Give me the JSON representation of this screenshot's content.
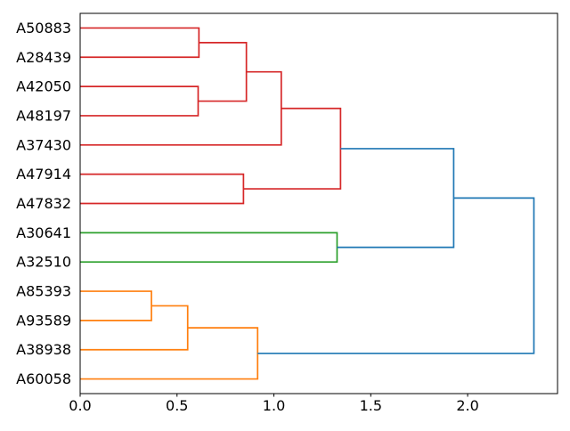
{
  "figure": {
    "background": "#ffffff"
  },
  "chart_data": {
    "type": "dendrogram",
    "orientation": "right",
    "title": "",
    "xlabel": "",
    "ylabel": "",
    "grid": false,
    "legend": null,
    "axis_color": "#000000",
    "text_color": "#000000",
    "xlim": [
      0,
      2.464
    ],
    "x_ticks": [
      0.0,
      0.5,
      1.0,
      1.5,
      2.0
    ],
    "x_tick_labels": [
      "0.0",
      "0.5",
      "1.0",
      "1.5",
      "2.0"
    ],
    "link_colors": {
      "red": "#d62728",
      "green": "#2ca02c",
      "orange": "#ff7f0e",
      "blue": "#1f77b4"
    },
    "leaves": [
      "A50883",
      "A28439",
      "A42050",
      "A48197",
      "A37430",
      "A47914",
      "A47832",
      "A30641",
      "A32510",
      "A85393",
      "A93589",
      "A38938",
      "A60058"
    ],
    "links": [
      {
        "id": 13,
        "children": [
          0,
          1
        ],
        "distance": 0.613,
        "color": "#d62728"
      },
      {
        "id": 14,
        "children": [
          2,
          3
        ],
        "distance": 0.609,
        "color": "#d62728"
      },
      {
        "id": 15,
        "children": [
          13,
          14
        ],
        "distance": 0.858,
        "color": "#d62728"
      },
      {
        "id": 16,
        "children": [
          15,
          4
        ],
        "distance": 1.038,
        "color": "#d62728"
      },
      {
        "id": 17,
        "children": [
          5,
          6
        ],
        "distance": 0.843,
        "color": "#d62728"
      },
      {
        "id": 18,
        "children": [
          16,
          17
        ],
        "distance": 1.344,
        "color": "#d62728"
      },
      {
        "id": 19,
        "children": [
          7,
          8
        ],
        "distance": 1.326,
        "color": "#2ca02c"
      },
      {
        "id": 20,
        "children": [
          18,
          19
        ],
        "distance": 1.928,
        "color": "#1f77b4"
      },
      {
        "id": 21,
        "children": [
          9,
          10
        ],
        "distance": 0.368,
        "color": "#ff7f0e"
      },
      {
        "id": 22,
        "children": [
          21,
          11
        ],
        "distance": 0.555,
        "color": "#ff7f0e"
      },
      {
        "id": 23,
        "children": [
          22,
          12
        ],
        "distance": 0.916,
        "color": "#ff7f0e"
      },
      {
        "id": 24,
        "children": [
          20,
          23
        ],
        "distance": 2.342,
        "color": "#1f77b4"
      }
    ]
  }
}
